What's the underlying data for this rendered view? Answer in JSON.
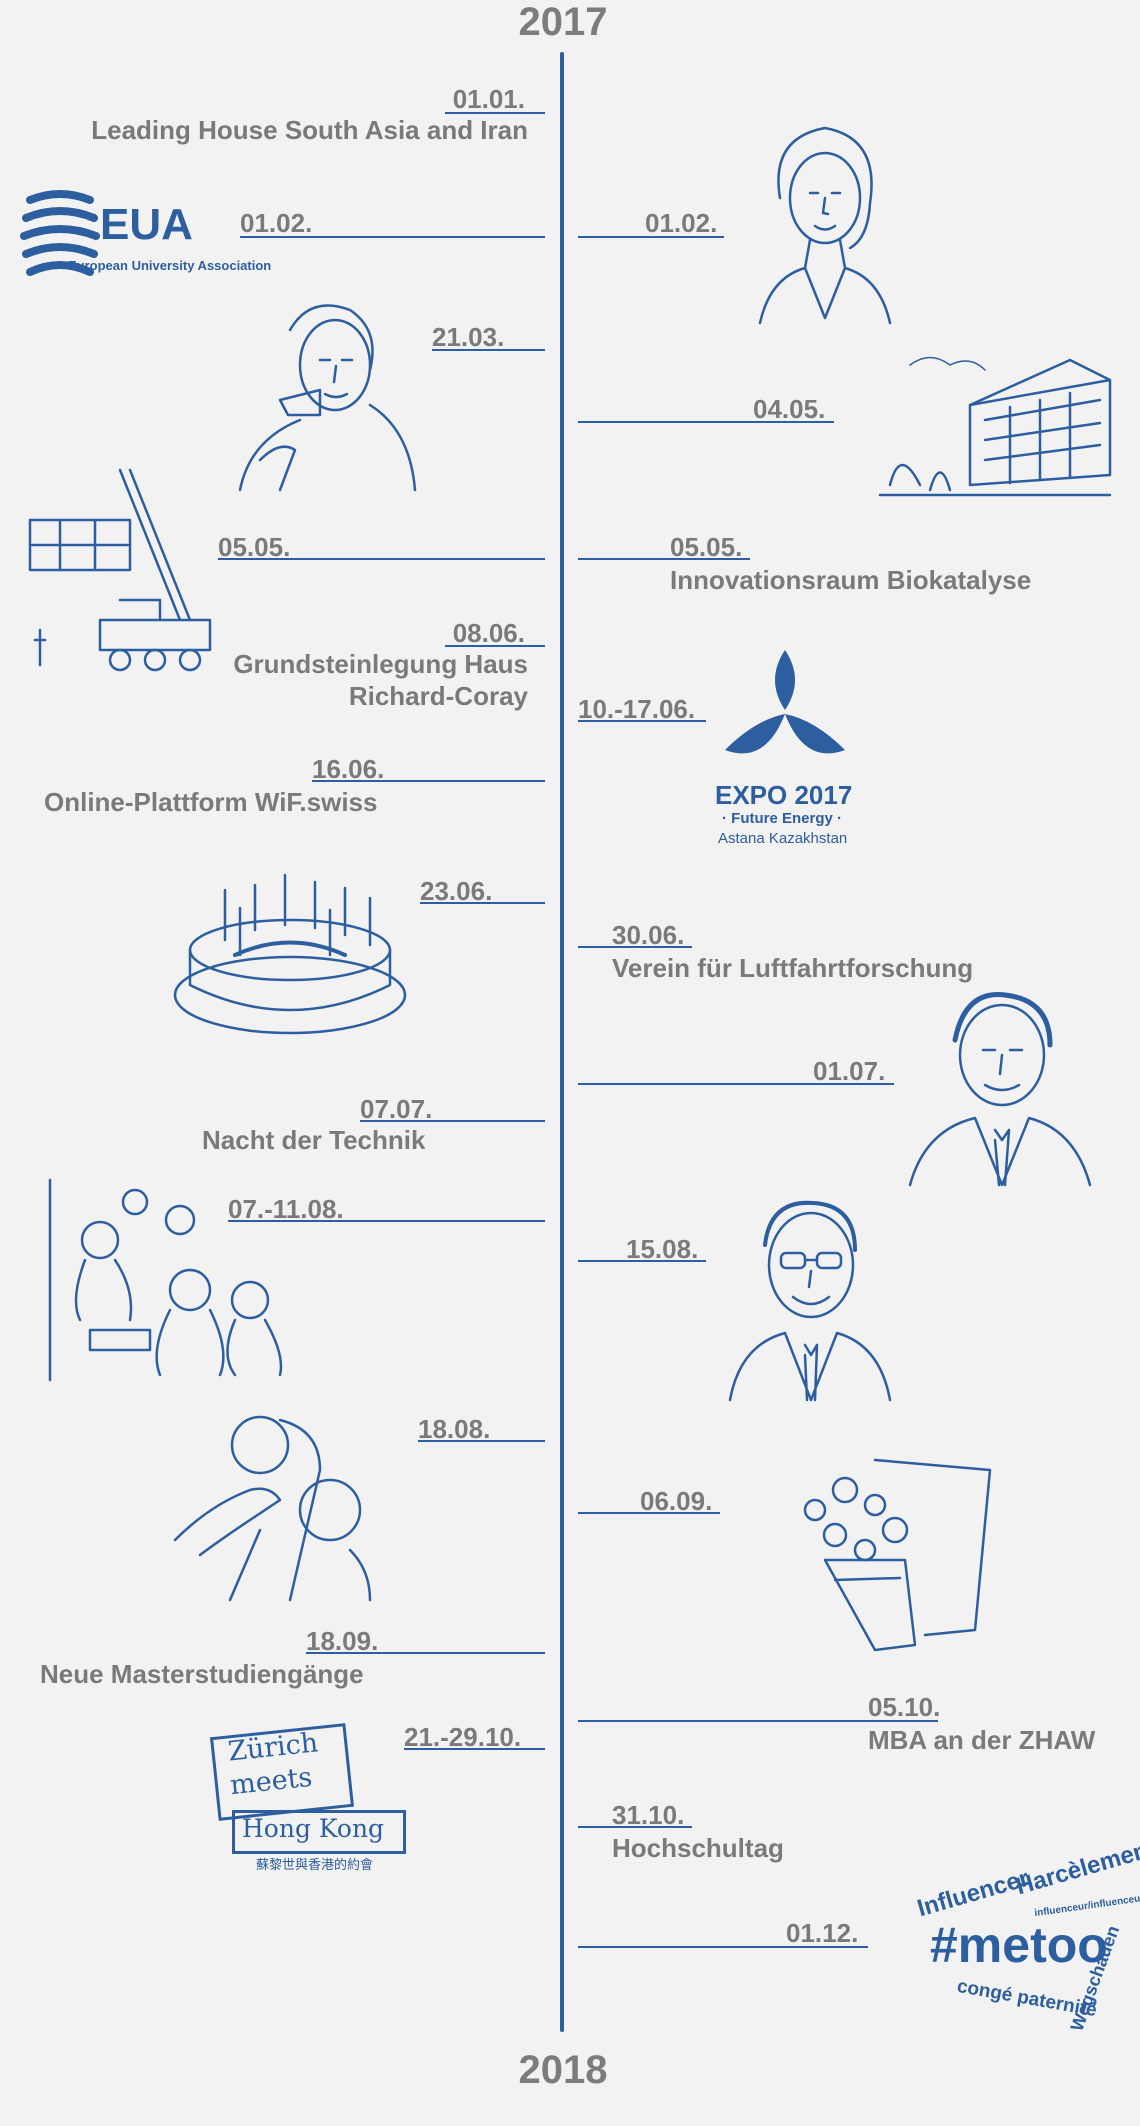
{
  "years": {
    "start": "2017",
    "end": "2018"
  },
  "colors": {
    "accent": "#2c5ea0",
    "text": "#7a7a7a",
    "background": "#f2f2f2"
  },
  "events": [
    {
      "date": "01.01.",
      "label": "Leading House South Asia and Iran",
      "side": "left"
    },
    {
      "date": "01.02.",
      "label": "",
      "side": "left",
      "icon": "eua-logo"
    },
    {
      "date": "01.02.",
      "label": "",
      "side": "right",
      "icon": "woman-portrait"
    },
    {
      "date": "21.03.",
      "label": "",
      "side": "left",
      "icon": "man-with-pipe"
    },
    {
      "date": "04.05.",
      "label": "",
      "side": "right",
      "icon": "building"
    },
    {
      "date": "05.05.",
      "label": "",
      "side": "left",
      "icon": "crane"
    },
    {
      "date": "05.05.",
      "label": "Innovationsraum Biokatalyse",
      "side": "right"
    },
    {
      "date": "08.06.",
      "label": [
        "Grundsteinlegung Haus",
        "Richard-Coray"
      ],
      "side": "left"
    },
    {
      "date": "10.-17.06.",
      "label": "",
      "side": "right",
      "icon": "expo-logo"
    },
    {
      "date": "16.06.",
      "label": "Online-Plattform WiF.swiss",
      "side": "left"
    },
    {
      "date": "23.06.",
      "label": "",
      "side": "left",
      "icon": "birthday-cake"
    },
    {
      "date": "30.06.",
      "label": "Verein für Luftfahrtforschung",
      "side": "right"
    },
    {
      "date": "01.07.",
      "label": "",
      "side": "right",
      "icon": "man-portrait"
    },
    {
      "date": "07.07.",
      "label": "Nacht der Technik",
      "side": "left"
    },
    {
      "date": "07.-11.08.",
      "label": "",
      "side": "left",
      "icon": "children-experiment"
    },
    {
      "date": "15.08.",
      "label": "",
      "side": "right",
      "icon": "man-glasses-portrait"
    },
    {
      "date": "18.08.",
      "label": "",
      "side": "left",
      "icon": "hands-tools"
    },
    {
      "date": "06.09.",
      "label": "",
      "side": "right",
      "icon": "flower-bouquet"
    },
    {
      "date": "18.09.",
      "label": "Neue Masterstudiengänge",
      "side": "left"
    },
    {
      "date": "05.10.",
      "label": "MBA an der ZHAW",
      "side": "right"
    },
    {
      "date": "21.-29.10.",
      "label": "",
      "side": "left",
      "icon": "zurich-hongkong-logo"
    },
    {
      "date": "31.10.",
      "label": "Hochschultag",
      "side": "right"
    },
    {
      "date": "01.12.",
      "label": "",
      "side": "right",
      "icon": "metoo-wordcloud"
    }
  ],
  "logos": {
    "eua": {
      "name": "EUA",
      "sub": "European University Association"
    },
    "expo": {
      "title": "EXPO 2017",
      "sub": "· Future Energy ·",
      "place": "Astana Kazakhstan"
    },
    "zurich": {
      "line1": "Zürich",
      "line2": "meets",
      "line3": "Hong Kong",
      "line4": "蘇黎世與香港的約會"
    },
    "metoo": {
      "main": "#metoo",
      "w1": "Influencer",
      "w2": "Harcèlement",
      "w3": "influenceur/influenceuse",
      "w4": "Wegschauen",
      "w5": "congé paternité"
    }
  }
}
